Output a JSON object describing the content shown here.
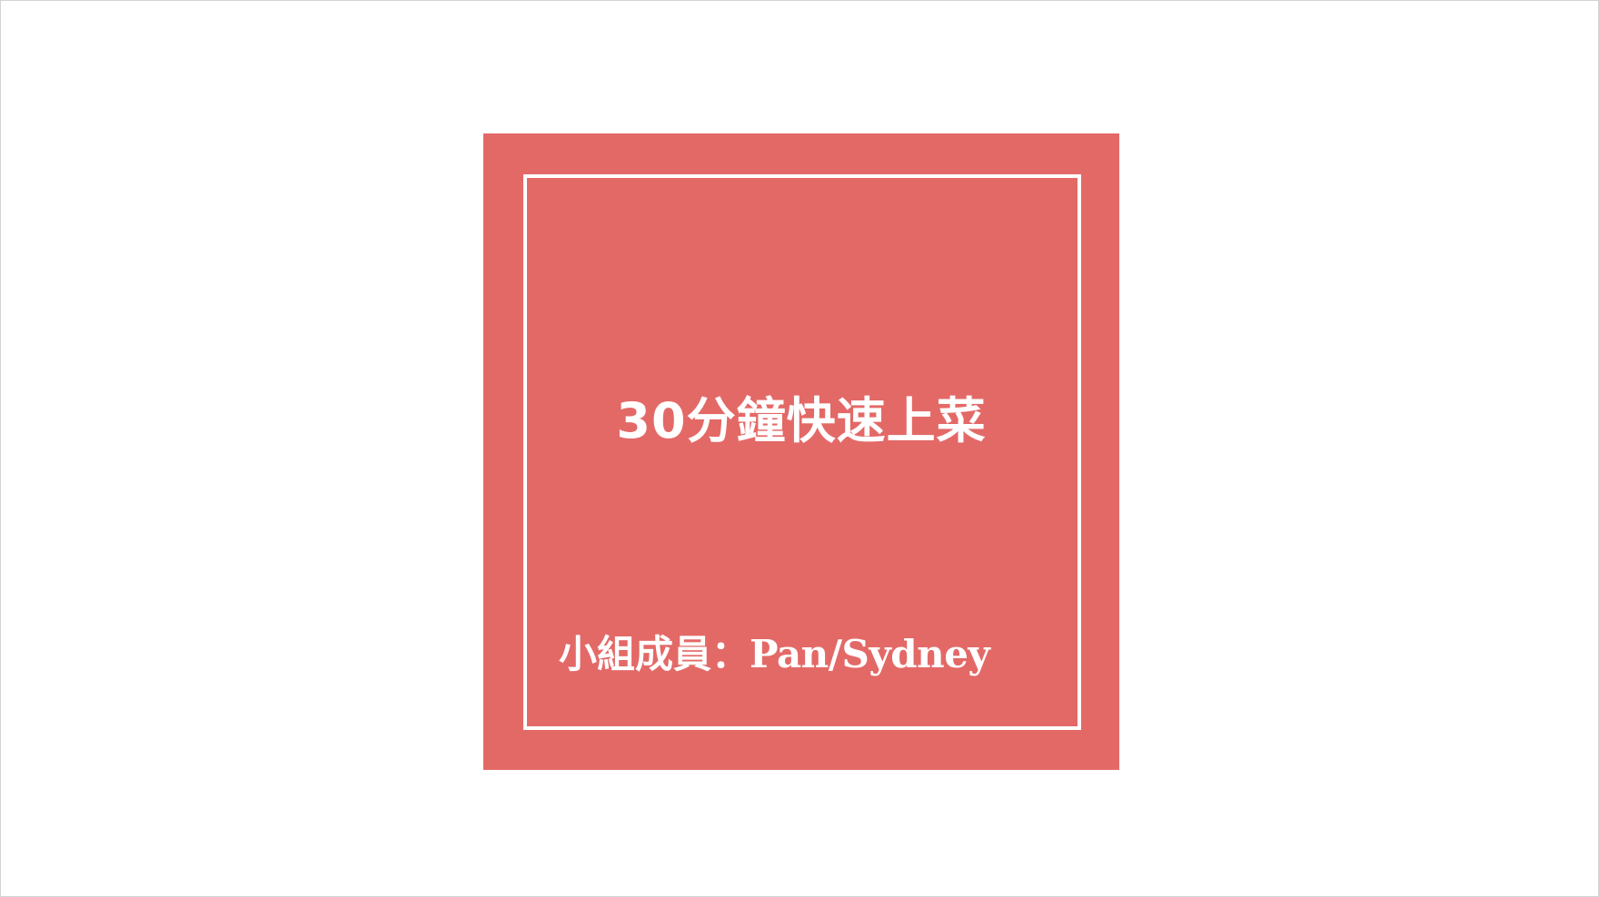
{
  "slide": {
    "title": "30分鐘快速上菜",
    "members_label": "小組成員：",
    "members_names": "Pan/Sydney"
  },
  "colors": {
    "card_background": "#e36967",
    "frame": "#ffffff",
    "text": "#ffffff",
    "slide_background": "#ffffff"
  }
}
